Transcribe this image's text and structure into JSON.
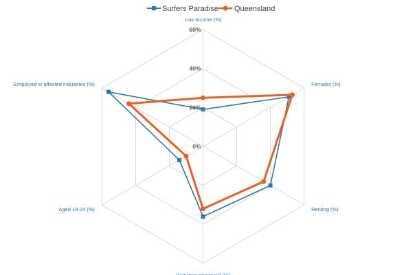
{
  "chart_data": {
    "type": "radar",
    "title": "",
    "axes": [
      "Low Income (%)",
      "Females (%)",
      "Renting (%)",
      "Part-time employed (%)",
      "Aged 18-24 (%)",
      "Employed in affected industries (%)"
    ],
    "rlim": [
      0,
      60
    ],
    "ticks": [
      0,
      20,
      40,
      60
    ],
    "tick_labels": [
      "0%",
      "20%",
      "40%",
      "60%"
    ],
    "grid": true,
    "legend_position": "top",
    "series": [
      {
        "name": "Surfers Paradise",
        "color": "#2e75b6",
        "marker": "square",
        "values": [
          19,
          51,
          40,
          36,
          14,
          56
        ]
      },
      {
        "name": "Queensland",
        "color": "#ed5f1e",
        "marker": "circle",
        "values": [
          25,
          53,
          36,
          32,
          10,
          44
        ]
      }
    ]
  }
}
